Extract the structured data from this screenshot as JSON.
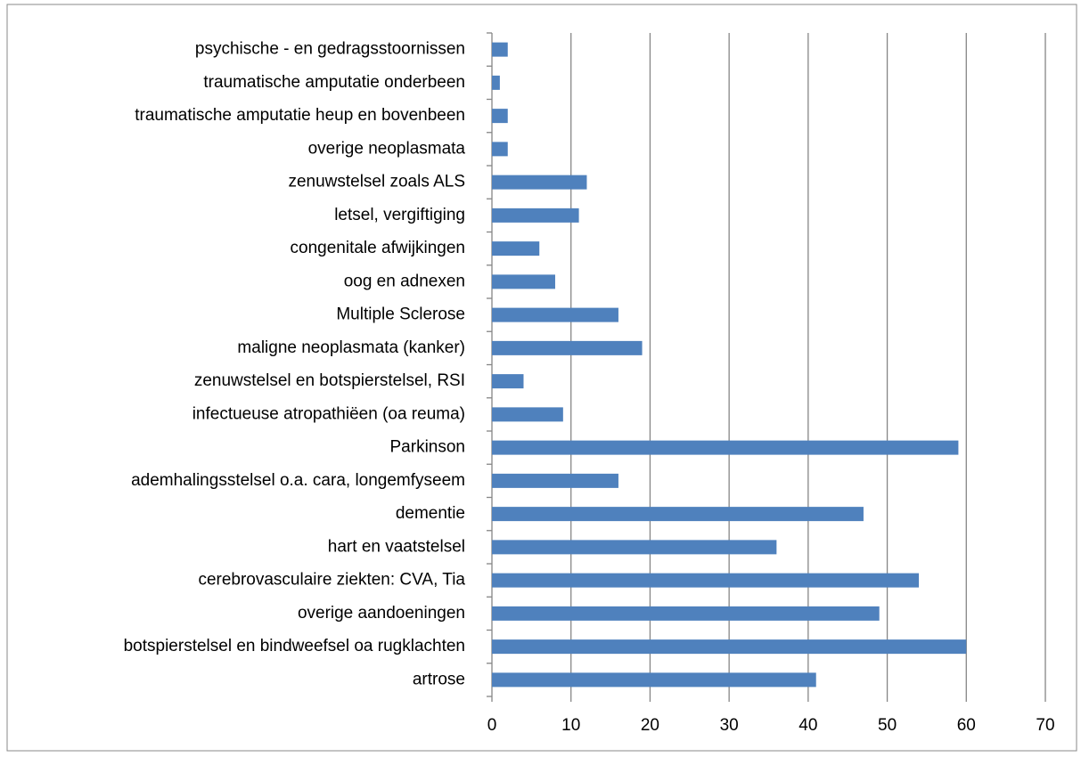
{
  "chart_data": {
    "type": "barh",
    "categories": [
      "artrose",
      "botspierstelsel en bindweefsel oa rugklachten",
      "overige aandoeningen",
      "cerebrovasculaire ziekten: CVA, Tia",
      "hart en vaatstelsel",
      "dementie",
      "ademhalingsstelsel o.a. cara, longemfyseem",
      "Parkinson",
      "infectueuse atropathiëen (oa reuma)",
      "zenuwstelsel en botspierstelsel, RSI",
      "maligne neoplasmata (kanker)",
      "Multiple Sclerose",
      "oog en adnexen",
      "congenitale afwijkingen",
      "letsel, vergiftiging",
      "zenuwstelsel zoals ALS",
      "overige neoplasmata",
      "traumatische amputatie heup en bovenbeen",
      "traumatische amputatie onderbeen",
      "psychische - en gedragsstoornissen"
    ],
    "values": [
      41,
      60,
      49,
      54,
      36,
      47,
      16,
      59,
      9,
      4,
      19,
      16,
      8,
      6,
      11,
      12,
      2,
      2,
      1,
      2
    ],
    "color": "#4f81bd",
    "xlim": [
      0,
      70
    ],
    "xticks": [
      0,
      10,
      20,
      30,
      40,
      50,
      60,
      70
    ],
    "grid": true
  }
}
